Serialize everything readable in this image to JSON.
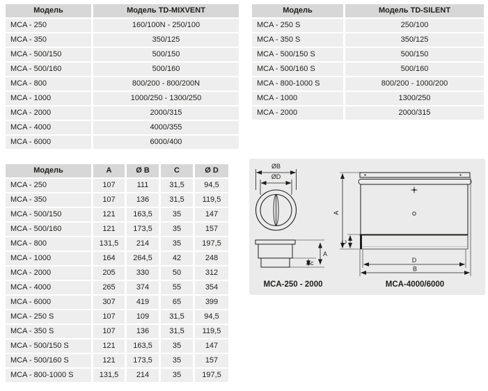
{
  "colors": {
    "header_bg": "#d7d7d7",
    "row_bg": "#eeeeee",
    "panel_bg": "#ebebeb",
    "text": "#1d1d1b",
    "line": "#1d1d1b"
  },
  "table_mixvent": {
    "headers": [
      "Модель",
      "Модель TD-MIXVENT"
    ],
    "rows": [
      [
        "MCA - 250",
        "160/100N - 250/100"
      ],
      [
        "MCA - 350",
        "350/125"
      ],
      [
        "MCA - 500/150",
        "500/150"
      ],
      [
        "MCA - 500/160",
        "500/160"
      ],
      [
        "MCA - 800",
        "800/200 - 800/200N"
      ],
      [
        "MCA - 1000",
        "1000/250 - 1300/250"
      ],
      [
        "MCA - 2000",
        "2000/315"
      ],
      [
        "MCA - 4000",
        "4000/355"
      ],
      [
        "MCA - 6000",
        "6000/400"
      ]
    ]
  },
  "table_silent": {
    "headers": [
      "Модель",
      "Модель TD-SILENT"
    ],
    "rows": [
      [
        "MCA - 250 S",
        "250/100"
      ],
      [
        "MCA - 350 S",
        "350/125"
      ],
      [
        "MCA - 500/150 S",
        "500/150"
      ],
      [
        "MCA - 500/160 S",
        "500/160"
      ],
      [
        "MCA - 800-1000 S",
        "800/200 - 1000/200"
      ],
      [
        "MCA - 1000",
        "1300/250"
      ],
      [
        "MCA - 2000",
        "2000/315"
      ]
    ]
  },
  "table_dimensions": {
    "headers": [
      "Модель",
      "A",
      "Ø B",
      "C",
      "Ø D"
    ],
    "rows": [
      [
        "MCA - 250",
        "107",
        "111",
        "31,5",
        "94,5"
      ],
      [
        "MCA - 350",
        "107",
        "136",
        "31,5",
        "119,5"
      ],
      [
        "MCA - 500/150",
        "121",
        "163,5",
        "35",
        "147"
      ],
      [
        "MCA - 500/160",
        "121",
        "173,5",
        "35",
        "157"
      ],
      [
        "MCA - 800",
        "131,5",
        "214",
        "35",
        "197,5"
      ],
      [
        "MCA - 1000",
        "164",
        "264,5",
        "42",
        "248"
      ],
      [
        "MCA - 2000",
        "205",
        "330",
        "50",
        "312"
      ],
      [
        "MCA - 4000",
        "265",
        "374",
        "55",
        "354"
      ],
      [
        "MCA - 6000",
        "307",
        "419",
        "65",
        "399"
      ],
      [
        "MCA - 250 S",
        "107",
        "109",
        "31,5",
        "94,5"
      ],
      [
        "MCA - 350 S",
        "107",
        "136",
        "31,5",
        "119,5"
      ],
      [
        "MCA - 500/150 S",
        "121",
        "163,5",
        "35",
        "147"
      ],
      [
        "MCA - 500/160 S",
        "121",
        "173,5",
        "35",
        "157"
      ],
      [
        "MCA - 800-1000 S",
        "131,5",
        "214",
        "35",
        "197,5"
      ]
    ]
  },
  "diagram": {
    "left": {
      "dim_ob": "ØB",
      "dim_od": "ØD",
      "dim_a": "A",
      "dim_c": "c",
      "caption": "MCA-250 - 2000"
    },
    "right": {
      "dim_a": "A",
      "dim_c": "C",
      "dim_d": "D",
      "dim_b": "B",
      "caption": "MCA-4000/6000"
    }
  }
}
